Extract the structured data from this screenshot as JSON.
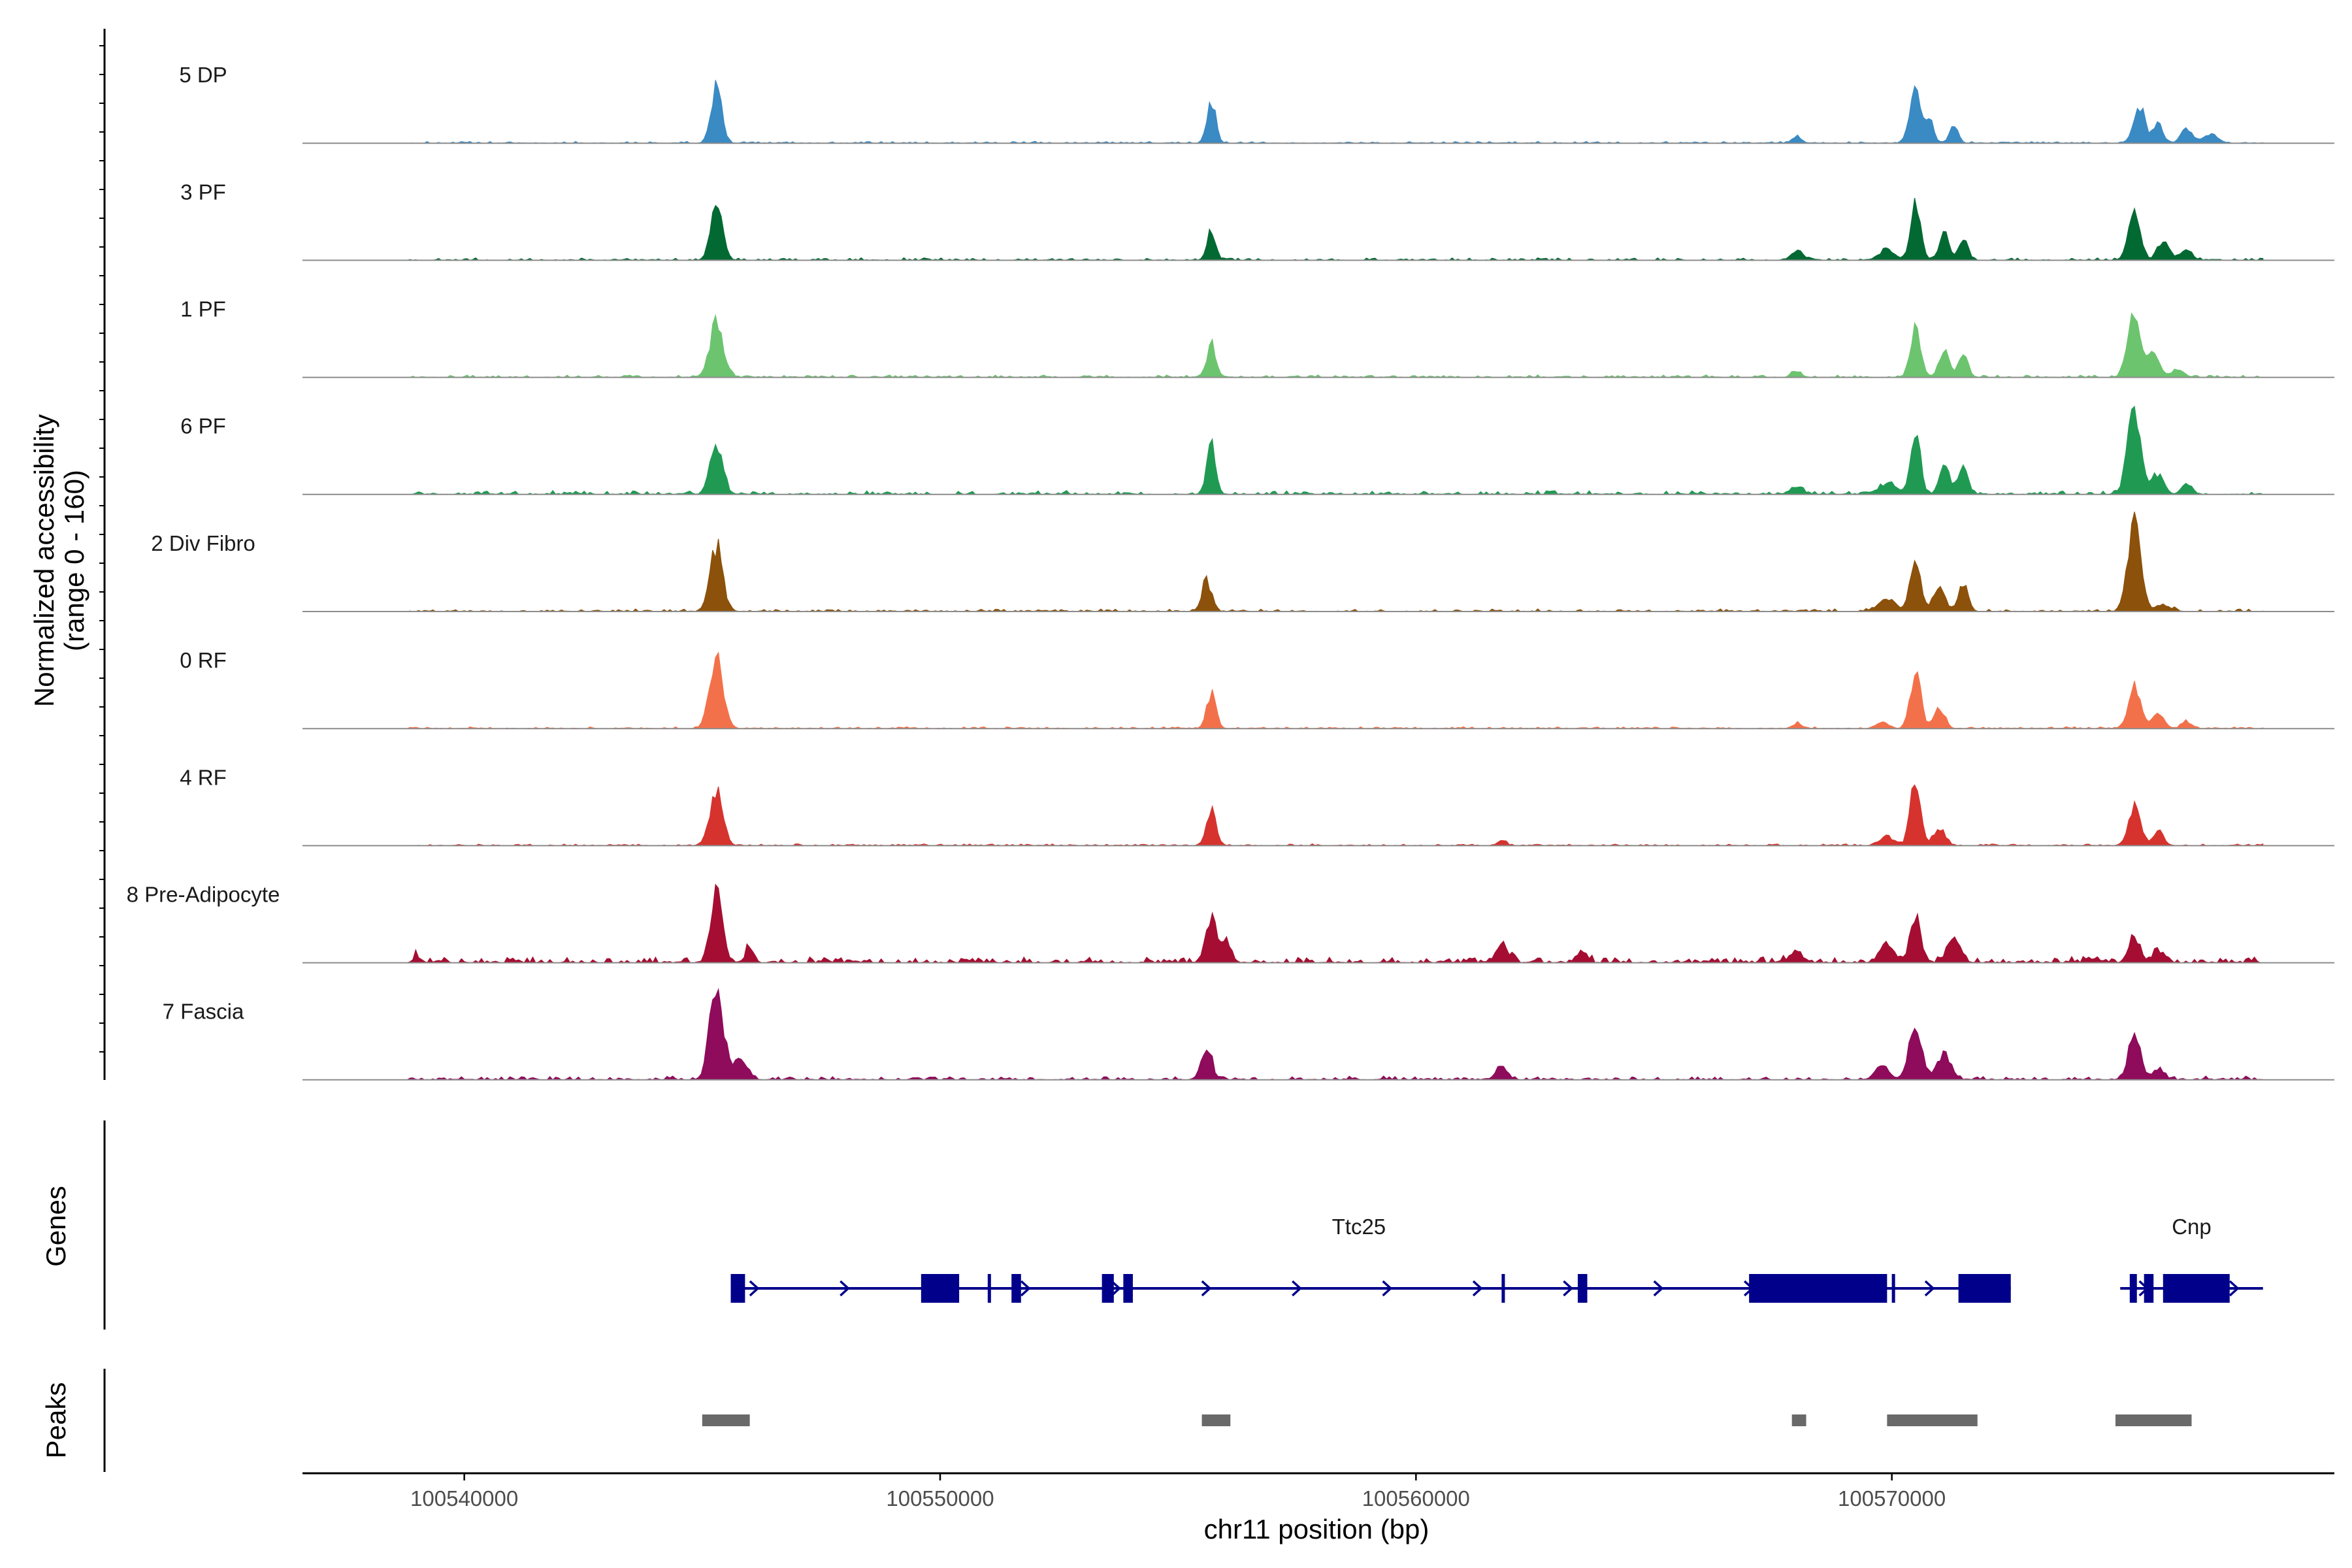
{
  "chart_data": {
    "type": "area",
    "title": "",
    "chromosome": "chr11",
    "xlabel": "chr11 position (bp)",
    "ylabel": "Normalized accessibility",
    "ylabel_range": "(range 0 - 160)",
    "ylim": [
      0,
      160
    ],
    "xlim": [
      100536600,
      100579300
    ],
    "x_ticks": [
      100540000,
      100550000,
      100560000,
      100570000
    ],
    "x_tick_labels": [
      "100540000",
      "100550000",
      "100560000",
      "100570000"
    ],
    "tracks": [
      {
        "name": "5 DP",
        "color": "#3a8ac4",
        "peaks": [
          [
            100545300,
            1.0,
            110
          ],
          [
            100555700,
            0.75,
            90
          ],
          [
            100570500,
            0.95,
            120
          ],
          [
            100570800,
            0.45,
            80
          ],
          [
            100571300,
            0.3,
            90
          ],
          [
            100575200,
            0.65,
            120
          ],
          [
            100575600,
            0.35,
            100
          ],
          [
            100576200,
            0.25,
            120
          ],
          [
            100576700,
            0.15,
            150
          ],
          [
            100568000,
            0.12,
            100
          ]
        ],
        "noise": 0.03
      },
      {
        "name": "3 PF",
        "color": "#036933",
        "peaks": [
          [
            100545300,
            1.0,
            120
          ],
          [
            100555700,
            0.55,
            90
          ],
          [
            100568000,
            0.18,
            120
          ],
          [
            100569900,
            0.18,
            160
          ],
          [
            100570500,
            1.0,
            100
          ],
          [
            100571100,
            0.5,
            100
          ],
          [
            100571500,
            0.4,
            90
          ],
          [
            100575100,
            0.95,
            120
          ],
          [
            100575700,
            0.35,
            120
          ],
          [
            100576200,
            0.2,
            110
          ]
        ],
        "noise": 0.04
      },
      {
        "name": "1 PF",
        "color": "#6cc46f",
        "peaks": [
          [
            100545300,
            0.95,
            140
          ],
          [
            100555700,
            0.55,
            100
          ],
          [
            100568000,
            0.1,
            100
          ],
          [
            100570500,
            0.8,
            110
          ],
          [
            100571100,
            0.45,
            110
          ],
          [
            100571500,
            0.4,
            100
          ],
          [
            100575100,
            1.05,
            140
          ],
          [
            100575500,
            0.45,
            120
          ],
          [
            100576000,
            0.15,
            120
          ]
        ],
        "noise": 0.04
      },
      {
        "name": "6 PF",
        "color": "#209a53",
        "peaks": [
          [
            100545300,
            0.9,
            130
          ],
          [
            100555700,
            0.85,
            90
          ],
          [
            100568000,
            0.12,
            130
          ],
          [
            100569900,
            0.18,
            200
          ],
          [
            100570500,
            1.15,
            100
          ],
          [
            100571100,
            0.55,
            100
          ],
          [
            100571500,
            0.45,
            100
          ],
          [
            100575100,
            1.5,
            140
          ],
          [
            100575600,
            0.35,
            120
          ],
          [
            100576200,
            0.2,
            100
          ]
        ],
        "noise": 0.06
      },
      {
        "name": "2 Div Fibro",
        "color": "#8c510a",
        "peaks": [
          [
            100545300,
            1.15,
            130
          ],
          [
            100555600,
            0.55,
            100
          ],
          [
            100569900,
            0.2,
            180
          ],
          [
            100570500,
            1.0,
            110
          ],
          [
            100571000,
            0.5,
            110
          ],
          [
            100571500,
            0.45,
            100
          ],
          [
            100575100,
            1.65,
            130
          ],
          [
            100575700,
            0.12,
            150
          ]
        ],
        "noise": 0.04
      },
      {
        "name": "0 RF",
        "color": "#f3714a",
        "peaks": [
          [
            100545300,
            1.25,
            140
          ],
          [
            100555700,
            0.6,
            100
          ],
          [
            100568000,
            0.08,
            100
          ],
          [
            100569800,
            0.1,
            120
          ],
          [
            100570500,
            1.0,
            110
          ],
          [
            100571000,
            0.35,
            110
          ],
          [
            100575100,
            0.75,
            130
          ],
          [
            100575600,
            0.25,
            120
          ],
          [
            100576200,
            0.12,
            110
          ]
        ],
        "noise": 0.03
      },
      {
        "name": "4 RF",
        "color": "#d6332e",
        "peaks": [
          [
            100545300,
            1.0,
            130
          ],
          [
            100555700,
            0.6,
            100
          ],
          [
            100561800,
            0.08,
            90
          ],
          [
            100569900,
            0.15,
            140
          ],
          [
            100570500,
            1.1,
            110
          ],
          [
            100571000,
            0.3,
            120
          ],
          [
            100575100,
            0.7,
            120
          ],
          [
            100575600,
            0.25,
            110
          ]
        ],
        "noise": 0.03
      },
      {
        "name": "8 Pre-Adipocyte",
        "color": "#a50e32",
        "peaks": [
          [
            100545300,
            1.3,
            120
          ],
          [
            100546000,
            0.3,
            80
          ],
          [
            100555700,
            0.7,
            120
          ],
          [
            100556000,
            0.35,
            110
          ],
          [
            100561800,
            0.35,
            120
          ],
          [
            100563500,
            0.2,
            100
          ],
          [
            100568000,
            0.2,
            120
          ],
          [
            100569900,
            0.35,
            140
          ],
          [
            100570500,
            0.7,
            120
          ],
          [
            100571300,
            0.4,
            130
          ],
          [
            100575100,
            0.4,
            120
          ],
          [
            100575600,
            0.2,
            110
          ],
          [
            100539000,
            0.12,
            60
          ],
          [
            100541000,
            0.08,
            60
          ]
        ],
        "noise": 0.1
      },
      {
        "name": "7 Fascia",
        "color": "#8f0b5b",
        "peaks": [
          [
            100545300,
            1.7,
            140
          ],
          [
            100545800,
            0.35,
            140
          ],
          [
            100555600,
            0.55,
            110
          ],
          [
            100561800,
            0.22,
            120
          ],
          [
            100569800,
            0.25,
            140
          ],
          [
            100570500,
            0.85,
            140
          ],
          [
            100571100,
            0.45,
            140
          ],
          [
            100575100,
            0.7,
            130
          ],
          [
            100575600,
            0.2,
            120
          ]
        ],
        "noise": 0.06
      }
    ],
    "genes": [
      {
        "name": "Ttc25",
        "label_x": 100558800,
        "start": 100545600,
        "end": 100572500,
        "exons": [
          [
            100545600,
            100545900
          ],
          [
            100549600,
            100550400
          ],
          [
            100551000,
            100551040
          ],
          [
            100551500,
            100551700
          ],
          [
            100553400,
            100553650
          ],
          [
            100553850,
            100554050
          ],
          [
            100561800,
            100561850
          ],
          [
            100563400,
            100563600
          ],
          [
            100567000,
            100569900
          ],
          [
            100570000,
            100570050
          ],
          [
            100571400,
            100572500
          ]
        ]
      },
      {
        "name": "Cnp",
        "label_x": 100576300,
        "start": 100574800,
        "end": 100577800,
        "exons": [
          [
            100575000,
            100575150
          ],
          [
            100575300,
            100575500
          ],
          [
            100575700,
            100577100
          ]
        ]
      }
    ],
    "peaks": [
      [
        100545000,
        100546000
      ],
      [
        100555500,
        100556100
      ],
      [
        100567900,
        100568200
      ],
      [
        100569900,
        100571800
      ],
      [
        100574700,
        100576300
      ]
    ],
    "genes_label": "Genes",
    "peaks_label": "Peaks",
    "colors": {
      "gene": "#00008b",
      "peak": "#696969",
      "axis": "#000000"
    }
  }
}
